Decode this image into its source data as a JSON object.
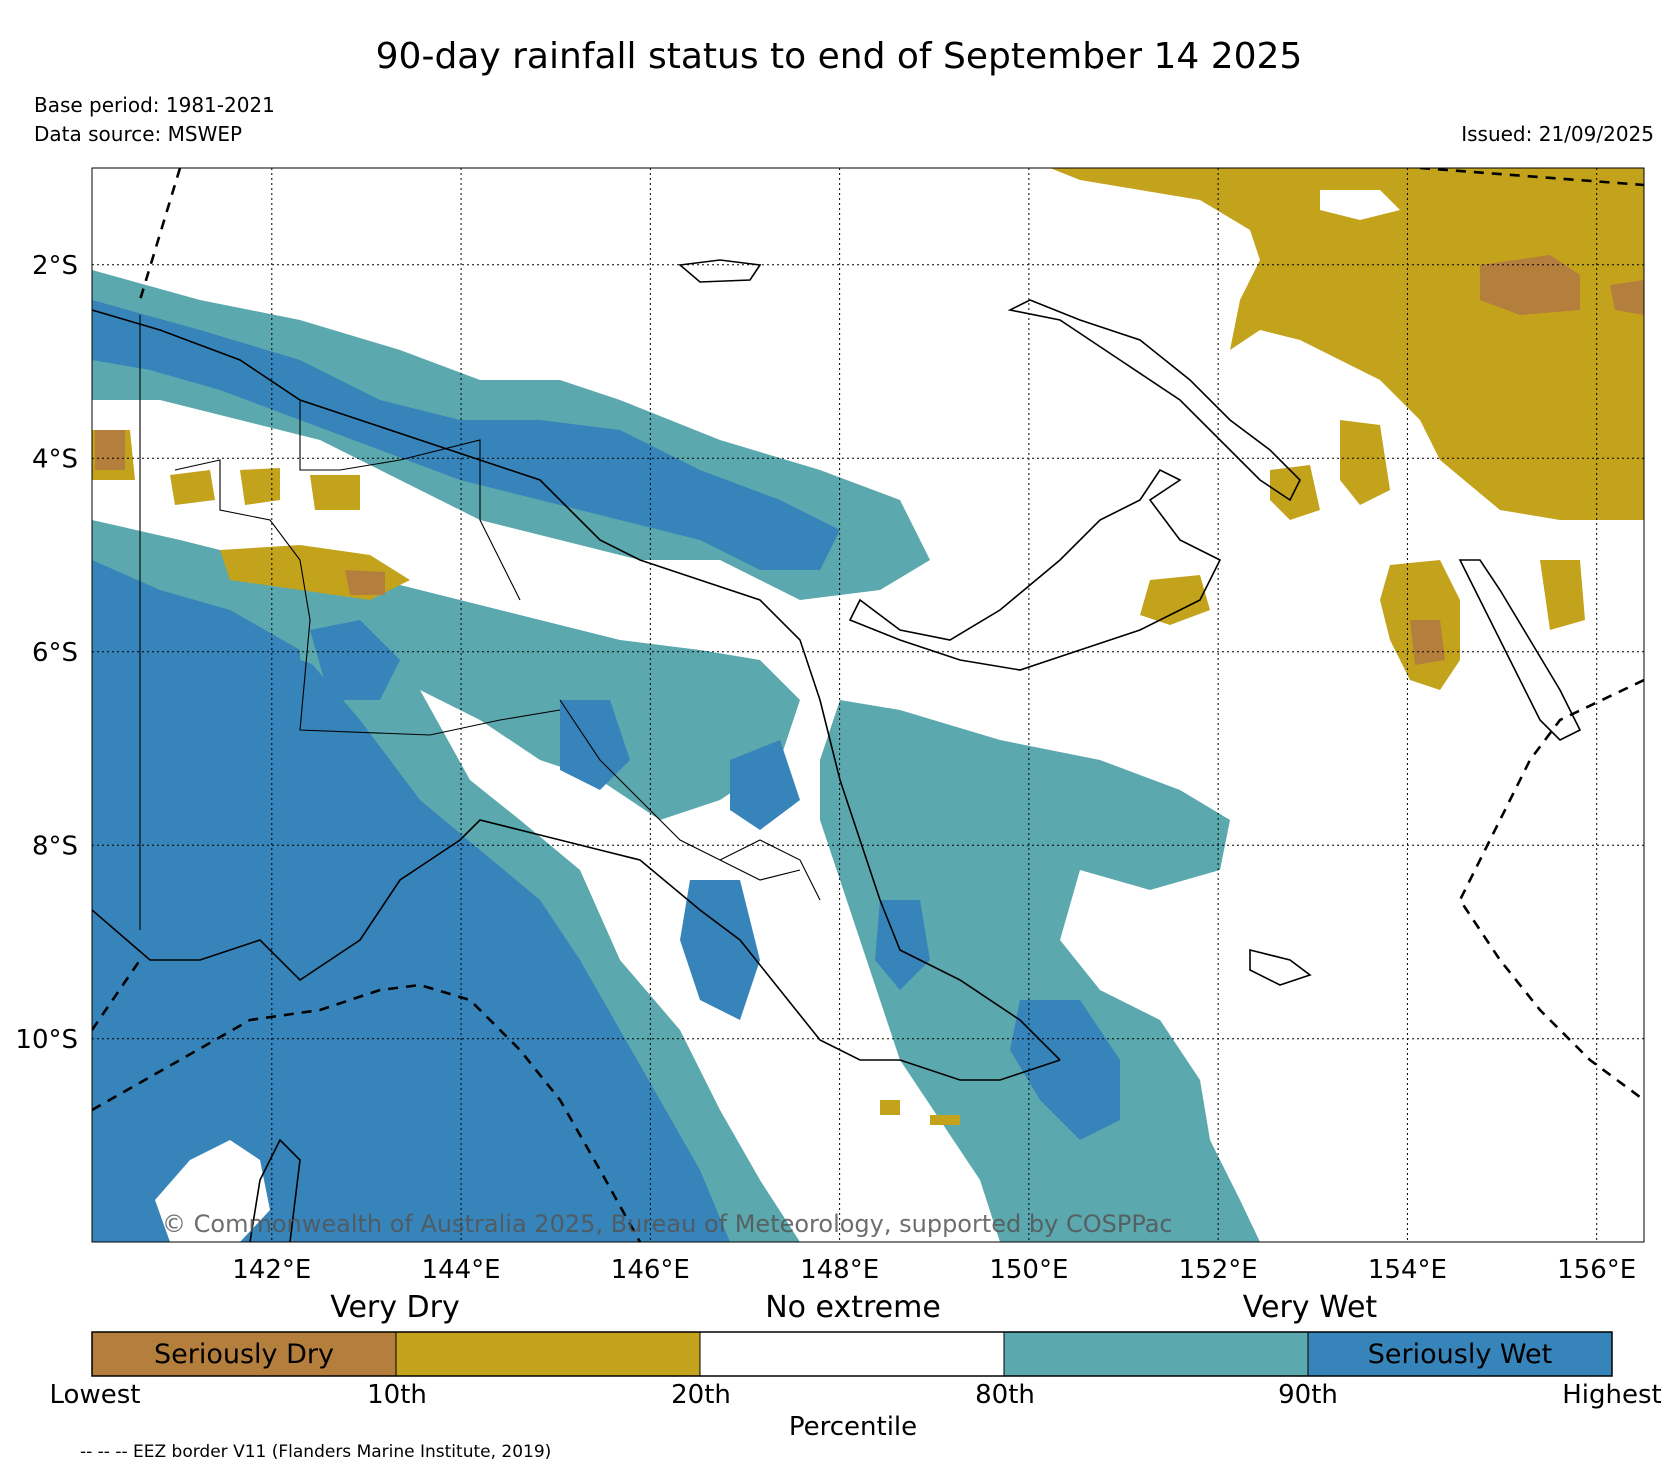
{
  "header": {
    "title": "90-day rainfall status to end of September 14 2025",
    "base_period": "Base period: 1981-2021",
    "data_source": "Data source: MSWEP",
    "issued": "Issued: 21/09/2025"
  },
  "map": {
    "lat_labels": [
      "2°S",
      "4°S",
      "6°S",
      "8°S",
      "10°S"
    ],
    "lat_values": [
      -2,
      -4,
      -6,
      -8,
      -10
    ],
    "lon_labels": [
      "142°E",
      "144°E",
      "146°E",
      "148°E",
      "150°E",
      "152°E",
      "154°E",
      "156°E"
    ],
    "lon_values": [
      142,
      144,
      146,
      148,
      150,
      152,
      154,
      156
    ],
    "lon_range": [
      140.1,
      156.5
    ],
    "lat_range": [
      -12.1,
      -1.0
    ],
    "copyright": "© Commonwealth of Australia 2025, Bureau of Meteorology, supported by COSPPac"
  },
  "colors": {
    "seriously_dry": "#b47e3c",
    "very_dry": "#c3a21c",
    "no_extreme": "#ffffff",
    "very_wet": "#5ba8ae",
    "seriously_wet": "#3784ba"
  },
  "legend": {
    "categories": [
      "Very Dry",
      "No extreme",
      "Very Wet"
    ],
    "bar_segments": [
      {
        "label": "Seriously Dry",
        "color": "#b47e3c"
      },
      {
        "label": "",
        "color": "#c3a21c"
      },
      {
        "label": "",
        "color": "#ffffff"
      },
      {
        "label": "",
        "color": "#5ba8ae"
      },
      {
        "label": "Seriously Wet",
        "color": "#3784ba"
      }
    ],
    "percentiles": [
      "Lowest",
      "10th",
      "20th",
      "80th",
      "90th",
      "Highest"
    ],
    "axis_title": "Percentile"
  },
  "footer": {
    "eez_note": "-- -- -- EEZ border V11 (Flanders Marine Institute, 2019)"
  }
}
